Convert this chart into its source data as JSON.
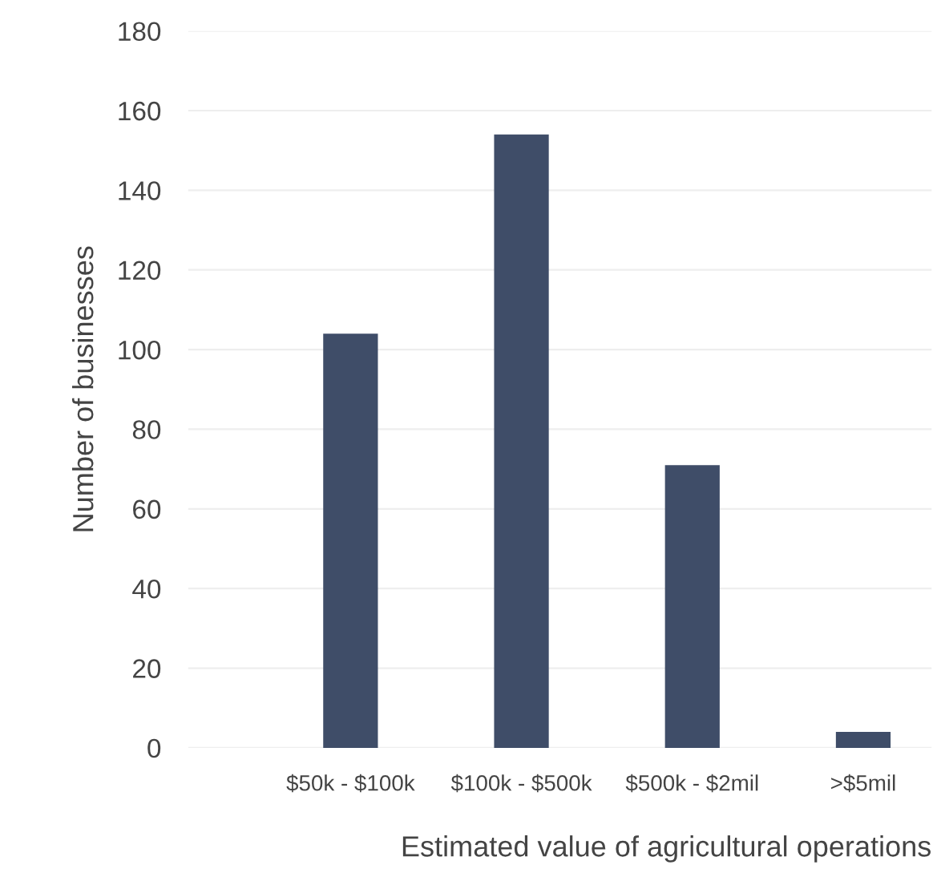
{
  "chart_data": {
    "type": "bar",
    "xlabel": "Estimated value of agricultural operations",
    "ylabel": "Number of businesses",
    "categories": [
      "$50k - $100k",
      "$100k - $500k",
      "$500k - $2mil",
      ">$5mil"
    ],
    "values": [
      104,
      154,
      71,
      4
    ],
    "color": "#3f4d68",
    "ylim": [
      0,
      180
    ],
    "yticks": [
      0,
      20,
      40,
      60,
      80,
      100,
      120,
      140,
      160,
      180
    ],
    "grid": "y"
  }
}
